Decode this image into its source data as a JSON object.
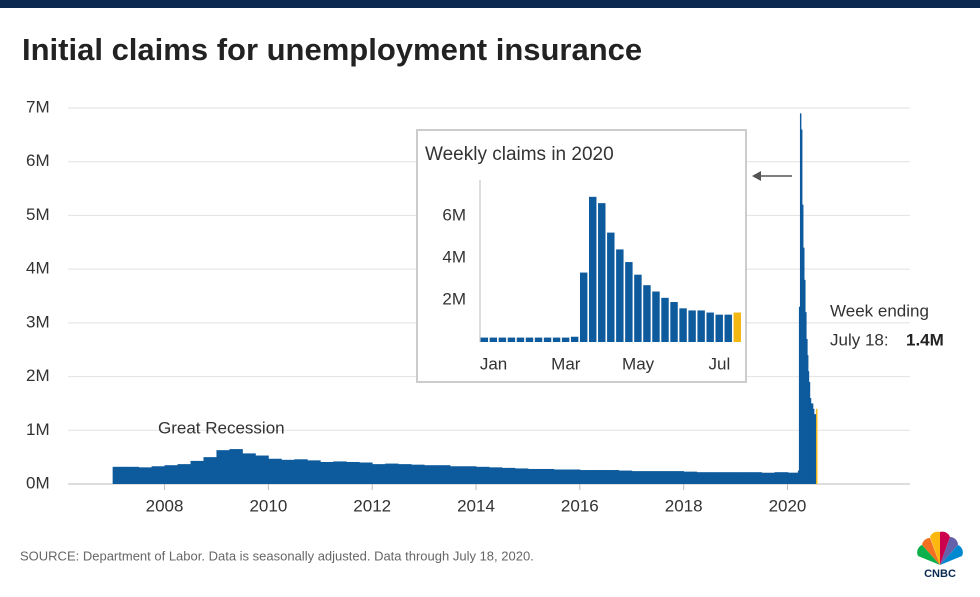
{
  "header": {
    "title": "Initial claims for unemployment insurance"
  },
  "chart_data": [
    {
      "type": "bar",
      "x": [
        2007,
        2007.25,
        2007.5,
        2007.75,
        2008,
        2008.25,
        2008.5,
        2008.75,
        2009,
        2009.25,
        2009.5,
        2009.75,
        2010,
        2010.25,
        2010.5,
        2010.75,
        2011,
        2011.25,
        2011.5,
        2011.75,
        2012,
        2012.25,
        2012.5,
        2012.75,
        2013,
        2013.25,
        2013.5,
        2013.75,
        2014,
        2014.25,
        2014.5,
        2014.75,
        2015,
        2015.25,
        2015.5,
        2015.75,
        2016,
        2016.25,
        2016.5,
        2016.75,
        2017,
        2017.25,
        2017.5,
        2017.75,
        2018,
        2018.25,
        2018.5,
        2018.75,
        2019,
        2019.25,
        2019.5,
        2019.75,
        2020.01,
        2020.03,
        2020.05,
        2020.07,
        2020.09,
        2020.11,
        2020.13,
        2020.15,
        2020.16,
        2020.18,
        2020.2,
        2020.22,
        2020.24,
        2020.26,
        2020.28,
        2020.3,
        2020.32,
        2020.34,
        2020.36,
        2020.38,
        2020.39,
        2020.41,
        2020.43,
        2020.45,
        2020.47,
        2020.49,
        2020.51,
        2020.53,
        2020.55
      ],
      "values": [
        0.32,
        0.32,
        0.31,
        0.33,
        0.35,
        0.37,
        0.43,
        0.5,
        0.63,
        0.65,
        0.57,
        0.53,
        0.47,
        0.45,
        0.46,
        0.44,
        0.41,
        0.42,
        0.41,
        0.4,
        0.37,
        0.38,
        0.37,
        0.36,
        0.35,
        0.35,
        0.33,
        0.33,
        0.32,
        0.31,
        0.3,
        0.29,
        0.28,
        0.28,
        0.27,
        0.27,
        0.26,
        0.26,
        0.26,
        0.25,
        0.24,
        0.24,
        0.24,
        0.24,
        0.23,
        0.22,
        0.22,
        0.22,
        0.22,
        0.22,
        0.21,
        0.22,
        0.21,
        0.21,
        0.21,
        0.21,
        0.21,
        0.21,
        0.21,
        0.21,
        0.21,
        0.21,
        0.25,
        3.3,
        6.9,
        6.6,
        5.2,
        4.4,
        3.8,
        3.2,
        2.7,
        2.4,
        2.1,
        1.9,
        1.6,
        1.5,
        1.5,
        1.4,
        1.3,
        1.3,
        1.4
      ],
      "value_labels": [
        null,
        null,
        null,
        null,
        null,
        null,
        null,
        null,
        null,
        null,
        null,
        null,
        null,
        null,
        null,
        null,
        null,
        null,
        null,
        null,
        null,
        null,
        null,
        null,
        null,
        null,
        null,
        null,
        null,
        null,
        null,
        null,
        null,
        null,
        null,
        null,
        null,
        null,
        null,
        null,
        null,
        null,
        null,
        null,
        null,
        null,
        null,
        null,
        null,
        null,
        null,
        null,
        null,
        null,
        null,
        null,
        null,
        null,
        null,
        null,
        null,
        null,
        null,
        null,
        null,
        null,
        null,
        null,
        null,
        null,
        null,
        null,
        null,
        null,
        null,
        null,
        null,
        null,
        null,
        null,
        "1.4M"
      ],
      "color": "#0d5a9c",
      "highlight_last_color": "#f3b714",
      "xlim": [
        2006.14,
        2022.36
      ],
      "xticks": [
        2008,
        2010,
        2012,
        2014,
        2016,
        2018,
        2020
      ],
      "ylim": [
        0,
        7
      ],
      "yticks": [
        {
          "value": 0,
          "label": "0M"
        },
        {
          "value": 1,
          "label": "1M"
        },
        {
          "value": 2,
          "label": "2M"
        },
        {
          "value": 3,
          "label": "3M"
        },
        {
          "value": 4,
          "label": "4M"
        },
        {
          "value": 5,
          "label": "5M"
        },
        {
          "value": 6,
          "label": "6M"
        },
        {
          "value": 7,
          "label": "7M"
        }
      ],
      "grid": true,
      "annotations": [
        "Great Recession",
        "Week ending",
        "July 18:"
      ]
    },
    {
      "type": "bar",
      "title": "Weekly claims in 2020",
      "categories": [
        null,
        "Jan",
        null,
        null,
        null,
        null,
        null,
        null,
        null,
        "Mar",
        null,
        null,
        null,
        null,
        null,
        null,
        null,
        "May",
        null,
        null,
        null,
        null,
        null,
        null,
        null,
        null,
        "Jul",
        null,
        null
      ],
      "values": [
        0.21,
        0.21,
        0.21,
        0.21,
        0.21,
        0.21,
        0.21,
        0.21,
        0.21,
        0.21,
        0.25,
        3.3,
        6.9,
        6.6,
        5.2,
        4.4,
        3.8,
        3.2,
        2.7,
        2.4,
        2.1,
        1.9,
        1.6,
        1.5,
        1.5,
        1.4,
        1.3,
        1.3,
        1.4
      ],
      "color": "#0d5a9c",
      "highlight_last_color": "#f3b714",
      "ylim": [
        0,
        7.7
      ],
      "yticks": [
        {
          "value": 2,
          "label": "2M"
        },
        {
          "value": 4,
          "label": "4M"
        },
        {
          "value": 6,
          "label": "6M"
        }
      ],
      "grid": false
    }
  ],
  "source": "SOURCE: Department of Labor. Data is seasonally adjusted. Data through July 18, 2020.",
  "logo": "CNBC"
}
